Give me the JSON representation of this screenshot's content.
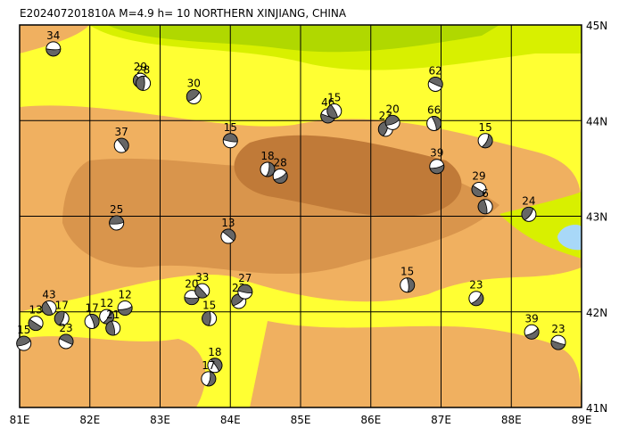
{
  "chart_data": {
    "type": "map",
    "title": "E202407201810A  M=4.9  h= 10 NORTHERN XINJIANG, CHINA",
    "xlim": [
      81,
      89
    ],
    "ylim": [
      41,
      45
    ],
    "xticks": [
      {
        "value": 81,
        "label": "81E"
      },
      {
        "value": 82,
        "label": "82E"
      },
      {
        "value": 83,
        "label": "83E"
      },
      {
        "value": 84,
        "label": "84E"
      },
      {
        "value": 85,
        "label": "85E"
      },
      {
        "value": 86,
        "label": "86E"
      },
      {
        "value": 87,
        "label": "87E"
      },
      {
        "value": 88,
        "label": "88E"
      },
      {
        "value": 89,
        "label": "89E"
      }
    ],
    "yticks": [
      {
        "value": 41,
        "label": "41N"
      },
      {
        "value": 42,
        "label": "42N"
      },
      {
        "value": 43,
        "label": "43N"
      },
      {
        "value": 44,
        "label": "44N"
      },
      {
        "value": 45,
        "label": "45N"
      }
    ],
    "grid": true,
    "x": [
      81.48,
      82.72,
      82.76,
      83.48,
      84.0,
      82.45,
      84.53,
      84.71,
      85.39,
      85.48,
      86.21,
      86.31,
      86.92,
      86.9,
      87.63,
      86.94,
      87.54,
      87.63,
      88.25,
      82.38,
      83.97,
      86.52,
      87.5,
      83.45,
      83.6,
      83.7,
      84.12,
      84.21,
      83.78,
      83.69,
      88.29,
      88.67,
      81.42,
      81.6,
      81.06,
      81.66,
      82.03,
      82.24,
      82.5,
      81.23,
      82.33
    ],
    "y": [
      44.75,
      44.42,
      44.39,
      44.25,
      43.79,
      43.74,
      43.49,
      43.42,
      44.05,
      44.1,
      43.91,
      43.98,
      44.38,
      43.97,
      43.79,
      43.52,
      43.28,
      43.1,
      43.02,
      42.93,
      42.79,
      42.28,
      42.14,
      42.15,
      42.22,
      41.93,
      42.11,
      42.21,
      41.44,
      41.3,
      41.79,
      41.68,
      42.04,
      41.93,
      41.67,
      41.69,
      41.9,
      41.95,
      42.04,
      41.88,
      41.83
    ],
    "values": [
      34,
      29,
      28,
      30,
      15,
      37,
      18,
      28,
      46,
      15,
      23,
      20,
      62,
      66,
      15,
      39,
      29,
      6,
      24,
      25,
      13,
      15,
      23,
      20,
      33,
      15,
      23,
      27,
      18,
      17,
      39,
      23,
      43,
      17,
      15,
      23,
      17,
      12,
      12,
      13,
      21
    ]
  }
}
